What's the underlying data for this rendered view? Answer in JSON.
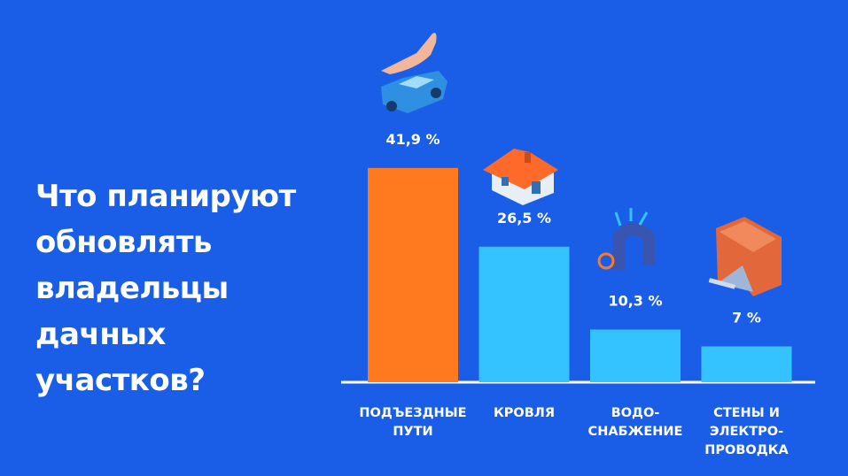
{
  "chart_data": {
    "type": "bar",
    "title": "Что планируют\nобновлять\nвладельцы\nдачных\nучастков?",
    "categories": [
      "ПОДЪЕЗДНЫЕ\nПУТИ",
      "КРОВЛЯ",
      "ВОДО-\nСНАБЖЕНИЕ",
      "СТЕНЫ И\nЭЛЕКТРО-\nПРОВОДКА"
    ],
    "values": [
      41.9,
      26.5,
      10.3,
      7
    ],
    "value_labels": [
      "41,9 %",
      "26,5 %",
      "10,3 %",
      "7 %"
    ],
    "colors": [
      "#ff7a1f",
      "#35c3ff",
      "#35c3ff",
      "#35c3ff"
    ]
  }
}
